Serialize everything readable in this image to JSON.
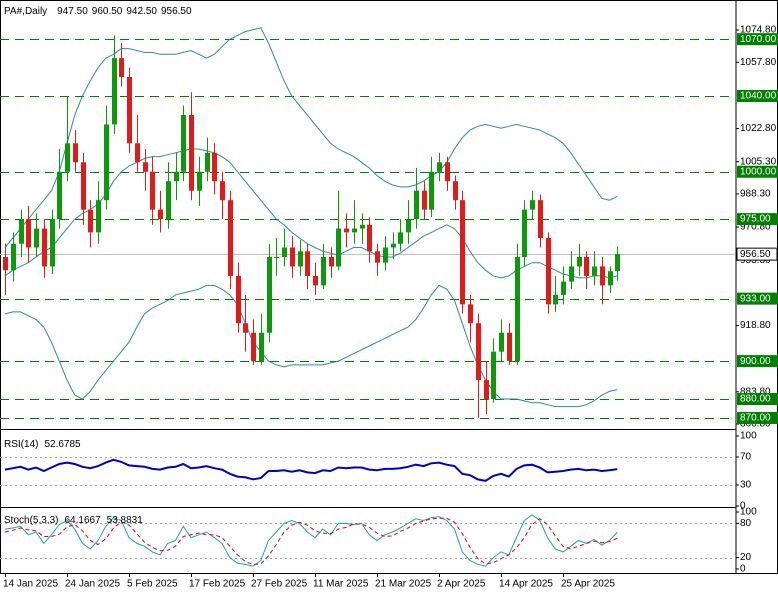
{
  "chart_data": [
    {
      "type": "candlestick",
      "title": "PA#,Daily",
      "header_values": [
        "947.50",
        "960.50",
        "942.50",
        "956.50"
      ],
      "categories": [
        "14 Jan 2025",
        null,
        null,
        null,
        null,
        null,
        null,
        null,
        "24 Jan 2025",
        null,
        null,
        null,
        null,
        null,
        null,
        null,
        "5 Feb 2025",
        null,
        null,
        null,
        null,
        null,
        null,
        null,
        "17 Feb 2025",
        null,
        null,
        null,
        null,
        null,
        null,
        null,
        "27 Feb 2025",
        null,
        null,
        null,
        null,
        null,
        null,
        null,
        "11 Mar 2025",
        null,
        null,
        null,
        null,
        null,
        null,
        null,
        "21 Mar 2025",
        null,
        null,
        null,
        null,
        null,
        null,
        null,
        "2 Apr 2025",
        null,
        null,
        null,
        null,
        null,
        null,
        null,
        "14 Apr 2025",
        null,
        null,
        null,
        null,
        null,
        null,
        null,
        "25 Apr 2025",
        null,
        null,
        null,
        null,
        null,
        null,
        null
      ],
      "open": [
        955,
        948,
        962,
        975,
        960,
        970,
        950,
        975,
        1000,
        1015,
        1005,
        980,
        968,
        985,
        1025,
        1060,
        1050,
        1015,
        1005,
        1000,
        980,
        975,
        995,
        1000,
        1030,
        990,
        1000,
        1010,
        995,
        985,
        945,
        920,
        915,
        900,
        915,
        955,
        955,
        960,
        950,
        958,
        945,
        940,
        955,
        950,
        970,
        968,
        970,
        972,
        958,
        952,
        960,
        962,
        968,
        975,
        990,
        980,
        1000,
        1005,
        995,
        985,
        930,
        920,
        890,
        880,
        905,
        915,
        900,
        955,
        980,
        985,
        965,
        930,
        935,
        942,
        950,
        955,
        945,
        950,
        940,
        947.5
      ],
      "high": [
        962,
        968,
        980,
        982,
        978,
        975,
        980,
        1012,
        1040,
        1022,
        1010,
        985,
        995,
        1035,
        1072,
        1068,
        1055,
        1030,
        1012,
        1008,
        990,
        1005,
        1010,
        1035,
        1042,
        1008,
        1018,
        1015,
        1000,
        990,
        952,
        935,
        922,
        925,
        962,
        965,
        970,
        966,
        964,
        962,
        952,
        962,
        960,
        990,
        978,
        985,
        978,
        976,
        962,
        966,
        968,
        975,
        985,
        1002,
        995,
        1008,
        1010,
        1008,
        998,
        990,
        935,
        925,
        900,
        912,
        922,
        920,
        962,
        985,
        990,
        988,
        968,
        945,
        950,
        958,
        962,
        958,
        958,
        955,
        950,
        960.5
      ],
      "low": [
        935,
        942,
        955,
        952,
        955,
        944,
        946,
        970,
        995,
        1000,
        972,
        960,
        962,
        980,
        1020,
        1045,
        1010,
        1000,
        990,
        972,
        968,
        970,
        985,
        995,
        985,
        982,
        995,
        988,
        975,
        938,
        915,
        905,
        898,
        898,
        910,
        945,
        950,
        944,
        945,
        938,
        935,
        938,
        944,
        948,
        960,
        962,
        962,
        952,
        945,
        948,
        954,
        958,
        962,
        970,
        975,
        976,
        995,
        990,
        980,
        925,
        910,
        870,
        872,
        878,
        900,
        898,
        898,
        950,
        975,
        960,
        925,
        926,
        930,
        938,
        945,
        938,
        940,
        930,
        936,
        942.5
      ],
      "close": [
        948,
        962,
        975,
        960,
        970,
        950,
        975,
        1000,
        1015,
        1005,
        980,
        968,
        985,
        1025,
        1060,
        1050,
        1015,
        1005,
        1000,
        980,
        975,
        995,
        1000,
        1030,
        990,
        1000,
        1010,
        995,
        985,
        945,
        920,
        915,
        900,
        915,
        955,
        955,
        960,
        950,
        958,
        945,
        940,
        955,
        950,
        970,
        968,
        970,
        972,
        958,
        952,
        960,
        962,
        968,
        975,
        990,
        980,
        1000,
        1005,
        995,
        985,
        930,
        920,
        890,
        880,
        905,
        915,
        900,
        955,
        980,
        985,
        965,
        930,
        935,
        942,
        950,
        955,
        945,
        950,
        940,
        947.5,
        956.5
      ],
      "up_color": "#0a9a0a",
      "down_color": "#e31a1a",
      "overlays": [
        {
          "color": "#2f8b9b",
          "values": [
            945,
            948,
            950,
            952,
            955,
            958,
            960,
            965,
            970,
            975,
            978,
            980,
            983,
            988,
            995,
            1000,
            1003,
            1005,
            1007,
            1008,
            1008,
            1009,
            1010,
            1011,
            1012,
            1012,
            1011,
            1010,
            1008,
            1005,
            1000,
            995,
            990,
            985,
            980,
            975,
            972,
            968,
            965,
            962,
            960,
            958,
            957,
            956,
            958,
            960,
            960,
            958,
            956,
            955,
            955,
            957,
            960,
            963,
            966,
            968,
            970,
            972,
            970,
            965,
            958,
            952,
            948,
            945,
            944,
            945,
            948,
            950,
            952,
            952,
            950,
            948,
            946,
            945,
            944,
            944,
            945,
            945,
            944,
            945
          ]
        },
        {
          "color": "#2f8b9b",
          "values": [
            960,
            965,
            970,
            975,
            980,
            985,
            990,
            1000,
            1015,
            1030,
            1040,
            1048,
            1055,
            1060,
            1062,
            1065,
            1065,
            1064,
            1063,
            1063,
            1062,
            1062,
            1062,
            1063,
            1064,
            1062,
            1060,
            1062,
            1066,
            1070,
            1072,
            1074,
            1075,
            1076,
            1068,
            1058,
            1048,
            1040,
            1035,
            1030,
            1025,
            1020,
            1015,
            1012,
            1010,
            1008,
            1005,
            1002,
            998,
            995,
            993,
            992,
            992,
            993,
            995,
            998,
            1000,
            1005,
            1012,
            1018,
            1022,
            1024,
            1025,
            1024,
            1023,
            1024,
            1025,
            1024,
            1023,
            1022,
            1020,
            1018,
            1015,
            1010,
            1004,
            998,
            992,
            986,
            985,
            987
          ]
        },
        {
          "color": "#2f8b9b",
          "values": [
            925,
            926,
            926,
            924,
            922,
            918,
            910,
            900,
            890,
            882,
            880,
            884,
            890,
            895,
            900,
            905,
            910,
            918,
            925,
            928,
            930,
            932,
            935,
            936,
            937,
            938,
            940,
            940,
            938,
            935,
            930,
            920,
            910,
            905,
            900,
            898,
            897,
            898,
            898,
            898,
            898,
            898,
            899,
            900,
            902,
            904,
            906,
            908,
            910,
            912,
            914,
            916,
            918,
            922,
            928,
            935,
            940,
            938,
            932,
            920,
            908,
            898,
            890,
            884,
            880,
            880,
            880,
            879,
            878,
            878,
            877,
            876,
            876,
            876,
            876,
            877,
            879,
            882,
            884,
            885
          ]
        }
      ],
      "ylim": [
        864.7,
        1089.1
      ],
      "yticks": [
        {
          "value": 1074.8,
          "label": "1074.80"
        },
        {
          "value": 1057.8,
          "label": "1057.80"
        },
        {
          "value": 1022.8,
          "label": "1022.80"
        },
        {
          "value": 1005.3,
          "label": "1005.30"
        },
        {
          "value": 988.3,
          "label": "988.30"
        },
        {
          "value": 970.8,
          "label": "970.80"
        },
        {
          "value": 953.3,
          "label": "953.30"
        },
        {
          "value": 918.8,
          "label": "918.80"
        },
        {
          "value": 883.8,
          "label": "883.80"
        },
        {
          "value": 866.8,
          "label": "866.80"
        }
      ],
      "levels": [
        {
          "value": 1070,
          "label": "1070.00"
        },
        {
          "value": 1040,
          "label": "1040.00"
        },
        {
          "value": 1000,
          "label": "1000.00"
        },
        {
          "value": 975,
          "label": "975.00"
        },
        {
          "value": 933,
          "label": "933.00"
        },
        {
          "value": 900,
          "label": "900.00"
        },
        {
          "value": 880,
          "label": "880.00"
        },
        {
          "value": 870,
          "label": "870.00"
        }
      ],
      "level_color": "#008000",
      "last_price": {
        "value": 956.5,
        "label": "956.50"
      }
    },
    {
      "type": "line",
      "title": "RSI(14)",
      "series": [
        {
          "color": "#0000cd",
          "values": [
            52,
            54,
            56,
            52,
            55,
            50,
            55,
            60,
            62,
            60,
            56,
            54,
            57,
            62,
            66,
            63,
            58,
            57,
            56,
            53,
            52,
            55,
            56,
            60,
            54,
            55,
            57,
            54,
            52,
            46,
            42,
            41,
            38,
            40,
            50,
            50,
            51,
            49,
            51,
            48,
            47,
            51,
            50,
            55,
            54,
            55,
            55,
            52,
            51,
            53,
            53,
            54,
            56,
            59,
            57,
            61,
            62,
            59,
            57,
            46,
            44,
            38,
            36,
            43,
            46,
            42,
            53,
            58,
            59,
            55,
            48,
            49,
            50,
            52,
            53,
            51,
            52,
            50,
            51,
            52.6785
          ]
        }
      ],
      "ylim": [
        0,
        100
      ],
      "yticks": [
        0,
        30,
        70,
        100
      ],
      "levels": [
        30,
        70
      ]
    },
    {
      "type": "line",
      "title": "Stoch(5,3,3)",
      "series": [
        {
          "color": "#20a0b0",
          "values": [
            70,
            72,
            75,
            60,
            65,
            45,
            60,
            78,
            85,
            70,
            45,
            35,
            50,
            75,
            90,
            85,
            55,
            45,
            40,
            30,
            25,
            45,
            50,
            75,
            55,
            60,
            65,
            55,
            45,
            20,
            10,
            8,
            5,
            15,
            50,
            65,
            80,
            85,
            80,
            65,
            55,
            70,
            60,
            80,
            80,
            78,
            80,
            60,
            50,
            60,
            65,
            72,
            80,
            88,
            85,
            90,
            92,
            85,
            70,
            30,
            15,
            8,
            5,
            20,
            30,
            25,
            55,
            85,
            95,
            85,
            55,
            35,
            30,
            40,
            50,
            45,
            52,
            42,
            50,
            64.1667
          ]
        },
        {
          "color": "#e00000",
          "dashed": true,
          "values": [
            65,
            68,
            72,
            69,
            67,
            57,
            57,
            61,
            74,
            78,
            67,
            50,
            43,
            53,
            72,
            83,
            77,
            62,
            47,
            38,
            32,
            33,
            40,
            57,
            60,
            63,
            60,
            60,
            55,
            40,
            25,
            13,
            8,
            9,
            23,
            43,
            65,
            77,
            82,
            77,
            67,
            63,
            62,
            70,
            73,
            79,
            79,
            73,
            63,
            57,
            58,
            66,
            72,
            80,
            84,
            88,
            89,
            89,
            82,
            62,
            38,
            18,
            9,
            11,
            18,
            25,
            37,
            55,
            78,
            88,
            78,
            58,
            40,
            35,
            40,
            45,
            49,
            46,
            48,
            53.8831
          ]
        }
      ],
      "ylim": [
        0,
        100
      ],
      "yticks": [
        0,
        20,
        80,
        100
      ],
      "levels": [
        20,
        80
      ]
    }
  ]
}
